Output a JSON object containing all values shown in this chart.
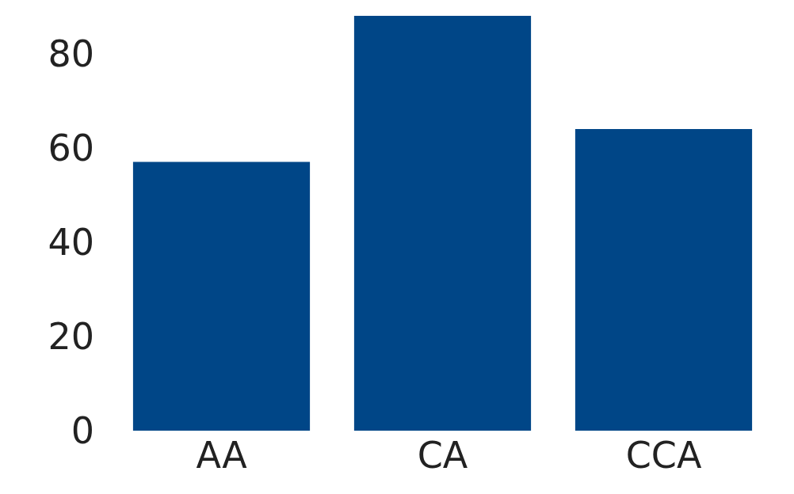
{
  "chart_data": {
    "type": "bar",
    "categories": [
      "AA",
      "CA",
      "CCA"
    ],
    "values": [
      57,
      88,
      64
    ],
    "color": "#004687",
    "ylim": [
      0,
      88
    ],
    "yticks": [
      0,
      20,
      40,
      60,
      80
    ],
    "grid": false
  }
}
